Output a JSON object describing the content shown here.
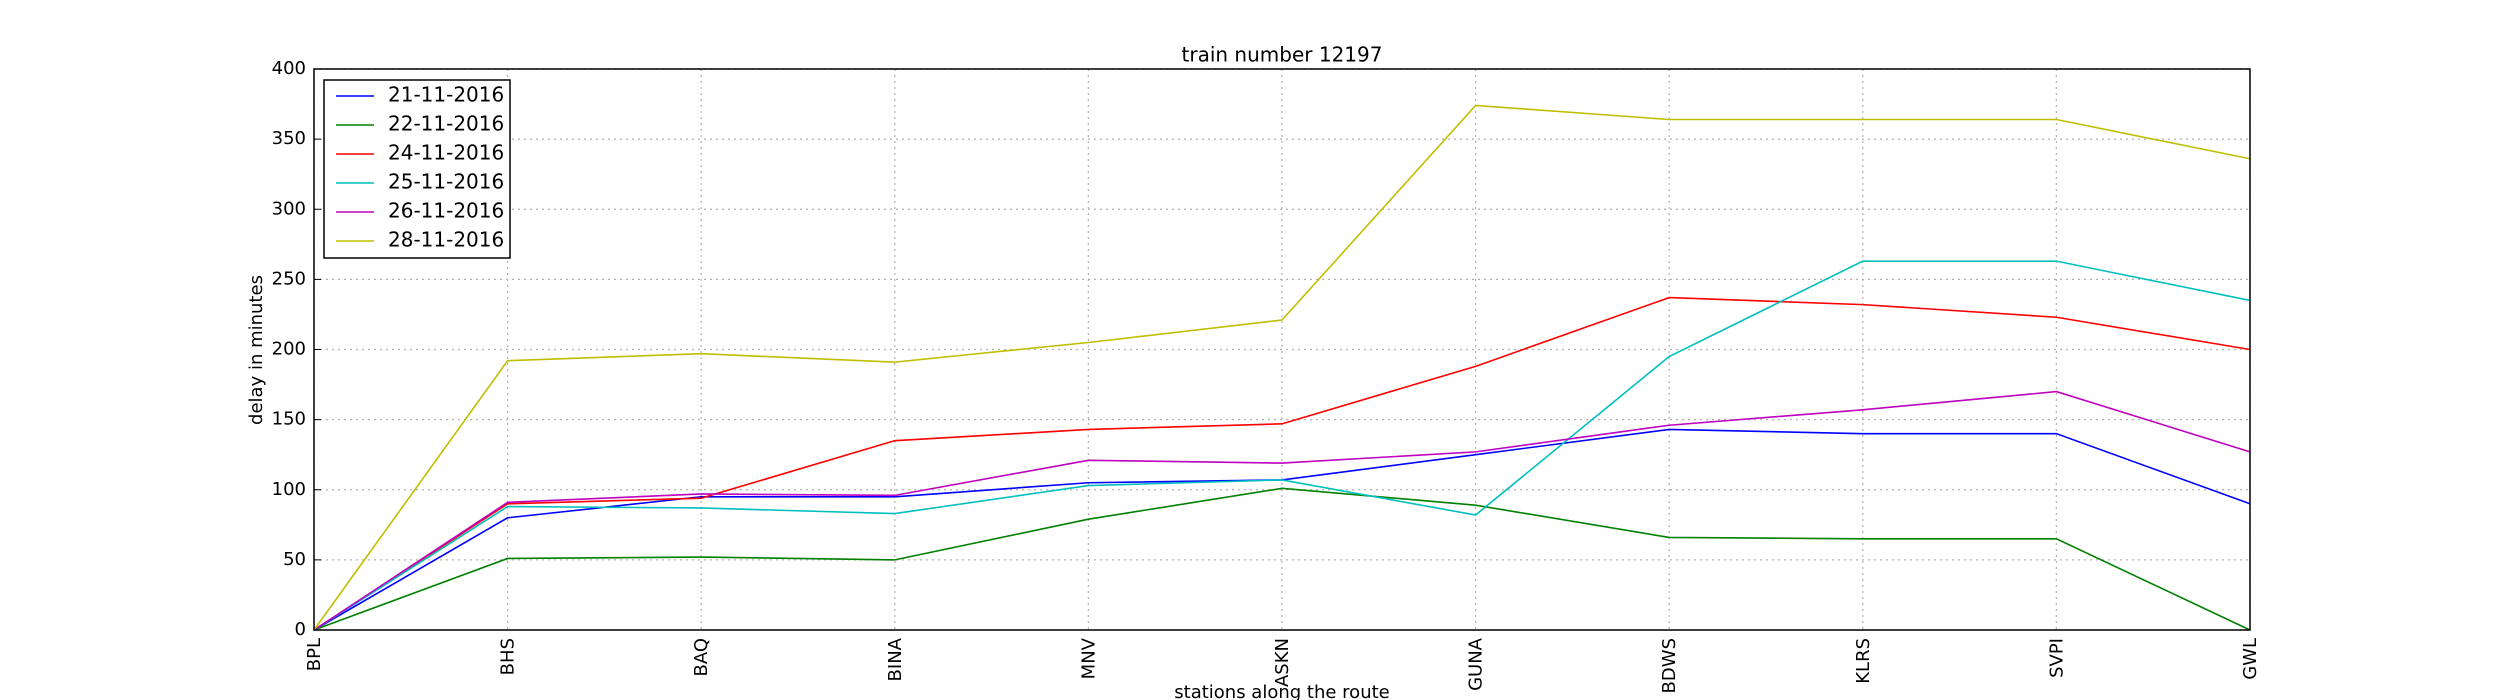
{
  "chart_data": {
    "type": "line",
    "title": "train number 12197",
    "x_label": "stations along the route",
    "y_label": "delay in minutes",
    "categories": [
      "BPL",
      "BHS",
      "BAQ",
      "BINA",
      "MNV",
      "ASKN",
      "GUNA",
      "BDWS",
      "KLRS",
      "SVPI",
      "GWL"
    ],
    "series": [
      {
        "name": "21-11-2016",
        "color": "#0000ff",
        "values": [
          0,
          80,
          95,
          95,
          105,
          107,
          125,
          143,
          140,
          140,
          90
        ]
      },
      {
        "name": "22-11-2016",
        "color": "#008000",
        "values": [
          0,
          51,
          52,
          50,
          79,
          101,
          89,
          66,
          65,
          65,
          0
        ]
      },
      {
        "name": "24-11-2016",
        "color": "#ff0000",
        "values": [
          0,
          90,
          94,
          135,
          143,
          147,
          188,
          237,
          232,
          223,
          200
        ]
      },
      {
        "name": "25-11-2016",
        "color": "#00bfbf",
        "values": [
          0,
          88,
          87,
          83,
          103,
          107,
          82,
          195,
          263,
          263,
          235
        ]
      },
      {
        "name": "26-11-2016",
        "color": "#bf00bf",
        "values": [
          0,
          91,
          97,
          96,
          121,
          119,
          127,
          146,
          157,
          170,
          127
        ]
      },
      {
        "name": "28-11-2016",
        "color": "#bfbf00",
        "values": [
          0,
          192,
          197,
          191,
          205,
          221,
          374,
          364,
          364,
          364,
          336
        ]
      }
    ],
    "ylim": [
      0,
      400
    ],
    "yticks": [
      0,
      50,
      100,
      150,
      200,
      250,
      300,
      350,
      400
    ],
    "grid": true,
    "legend": "upper left"
  }
}
